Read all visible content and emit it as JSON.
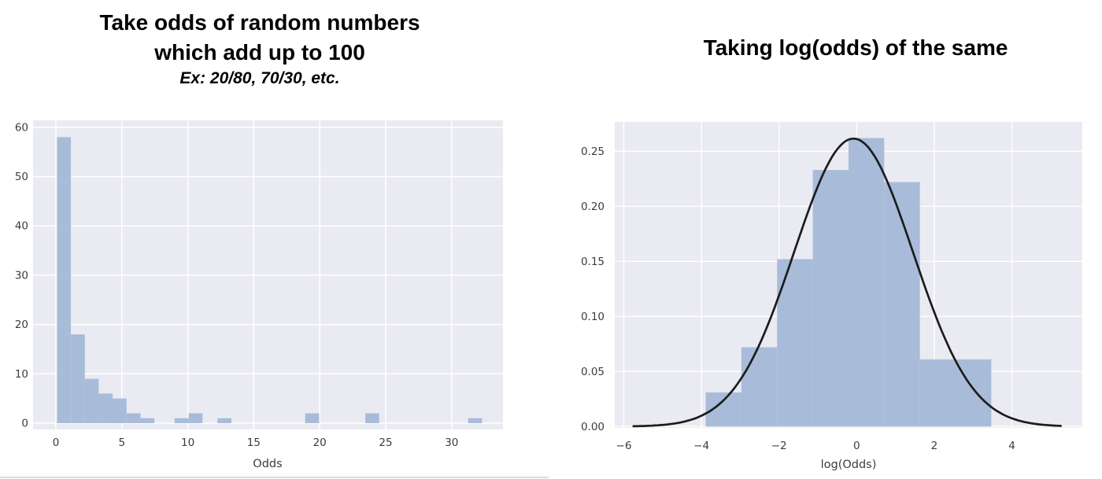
{
  "headers": {
    "left": {
      "line1": "Take odds of random numbers",
      "line2": "which add up to 100",
      "subtitle": "Ex: 20/80, 70/30, etc."
    },
    "right": {
      "title": "Taking log(odds) of the same"
    }
  },
  "colors": {
    "page_bg": "#ffffff",
    "plot_bg": "#eaeaf2",
    "grid": "#ffffff",
    "bar_fill": "#a8bcd9",
    "curve": "#1c1c1c",
    "tick_text": "#3c3c3c",
    "title_text": "#000000",
    "baseline_rule": "#dcdcdc"
  },
  "chart_data": [
    {
      "type": "bar",
      "variant": "histogram",
      "title": "Take odds of random numbers which add up to 100 (Ex: 20/80, 70/30, etc.)",
      "xlabel": "Odds",
      "ylabel": "",
      "grid": true,
      "legend": false,
      "xlim": [
        -1.73,
        33.9
      ],
      "ylim": [
        0,
        61.4
      ],
      "xticks": [
        {
          "v": 0,
          "label": "0"
        },
        {
          "v": 5,
          "label": "5"
        },
        {
          "v": 10,
          "label": "10"
        },
        {
          "v": 15,
          "label": "15"
        },
        {
          "v": 20,
          "label": "20"
        },
        {
          "v": 25,
          "label": "25"
        },
        {
          "v": 30,
          "label": "30"
        }
      ],
      "yticks": [
        {
          "v": 0,
          "label": "0"
        },
        {
          "v": 10,
          "label": "10"
        },
        {
          "v": 20,
          "label": "20"
        },
        {
          "v": 30,
          "label": "30"
        },
        {
          "v": 40,
          "label": "40"
        },
        {
          "v": 50,
          "label": "50"
        },
        {
          "v": 60,
          "label": "60"
        }
      ],
      "bin_width": 1.056,
      "bars": [
        {
          "x": 0.08,
          "h": 58
        },
        {
          "x": 1.14,
          "h": 18
        },
        {
          "x": 2.19,
          "h": 9
        },
        {
          "x": 3.25,
          "h": 6
        },
        {
          "x": 4.3,
          "h": 5
        },
        {
          "x": 5.36,
          "h": 2
        },
        {
          "x": 6.41,
          "h": 1
        },
        {
          "x": 9.0,
          "h": 1
        },
        {
          "x": 10.06,
          "h": 2
        },
        {
          "x": 12.25,
          "h": 1
        },
        {
          "x": 18.9,
          "h": 2
        },
        {
          "x": 23.45,
          "h": 2
        },
        {
          "x": 31.25,
          "h": 1
        }
      ]
    },
    {
      "type": "bar",
      "variant": "histogram+kde",
      "title": "Taking log(odds) of the same",
      "xlabel": "log(Odds)",
      "ylabel": "",
      "grid": true,
      "legend": false,
      "xlim": [
        -6.23,
        5.82
      ],
      "ylim": [
        0,
        0.2767
      ],
      "xticks": [
        {
          "v": -6,
          "label": "−6"
        },
        {
          "v": -4,
          "label": "−4"
        },
        {
          "v": -2,
          "label": "−2"
        },
        {
          "v": 0,
          "label": "0"
        },
        {
          "v": 2,
          "label": "2"
        },
        {
          "v": 4,
          "label": "4"
        }
      ],
      "yticks": [
        {
          "v": 0.0,
          "label": "0.00"
        },
        {
          "v": 0.05,
          "label": "0.05"
        },
        {
          "v": 0.1,
          "label": "0.10"
        },
        {
          "v": 0.15,
          "label": "0.15"
        },
        {
          "v": 0.2,
          "label": "0.20"
        },
        {
          "v": 0.25,
          "label": "0.25"
        }
      ],
      "bin_width": 0.92,
      "bars": [
        {
          "x": -3.89,
          "h": 0.031
        },
        {
          "x": -2.97,
          "h": 0.072
        },
        {
          "x": -2.05,
          "h": 0.152
        },
        {
          "x": -1.13,
          "h": 0.233
        },
        {
          "x": -0.21,
          "h": 0.262
        },
        {
          "x": 0.71,
          "h": 0.222
        },
        {
          "x": 1.63,
          "h": 0.061
        },
        {
          "x": 2.55,
          "h": 0.061
        }
      ],
      "kde": {
        "shape": "normal",
        "mean": -0.08,
        "sd": 1.53,
        "peak": 0.2615,
        "x_start": -5.75,
        "x_end": 5.26
      }
    }
  ]
}
